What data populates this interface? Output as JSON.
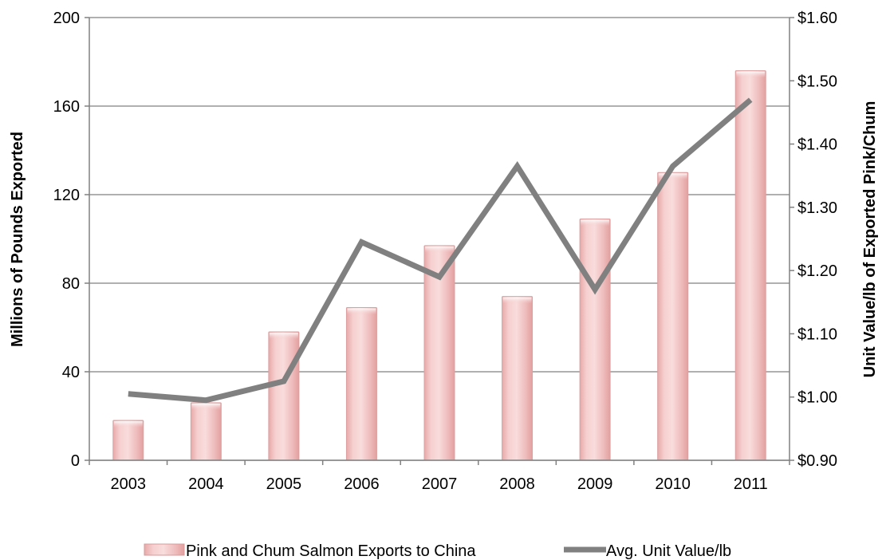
{
  "chart_data": {
    "type": "bar",
    "categories": [
      "2003",
      "2004",
      "2005",
      "2006",
      "2007",
      "2008",
      "2009",
      "2010",
      "2011"
    ],
    "series": [
      {
        "name": "Pink and Chum Salmon Exports to China",
        "type": "bar",
        "axis": "left",
        "values": [
          18,
          26,
          58,
          69,
          97,
          74,
          109,
          130,
          176
        ],
        "color": "#f2c4c4"
      },
      {
        "name": "Avg. Unit Value/lb",
        "type": "line",
        "axis": "right",
        "values": [
          1.005,
          0.995,
          1.025,
          1.245,
          1.19,
          1.365,
          1.17,
          1.365,
          1.47
        ],
        "color": "#808080"
      }
    ],
    "left_axis": {
      "label": "Millions of Pounds Exported",
      "ylim": [
        0,
        200
      ],
      "ticks": [
        "0",
        "40",
        "80",
        "120",
        "160",
        "200"
      ],
      "tick_values": [
        0,
        40,
        80,
        120,
        160,
        200
      ]
    },
    "right_axis": {
      "label": "Unit Value/lb of Exported Pink/Chum",
      "ylim": [
        0.9,
        1.6
      ],
      "ticks": [
        "$0.90",
        "$1.00",
        "$1.10",
        "$1.20",
        "$1.30",
        "$1.40",
        "$1.50",
        "$1.60"
      ],
      "tick_values": [
        0.9,
        1.0,
        1.1,
        1.2,
        1.3,
        1.4,
        1.5,
        1.6
      ]
    },
    "grid": true,
    "legend_position": "bottom"
  }
}
